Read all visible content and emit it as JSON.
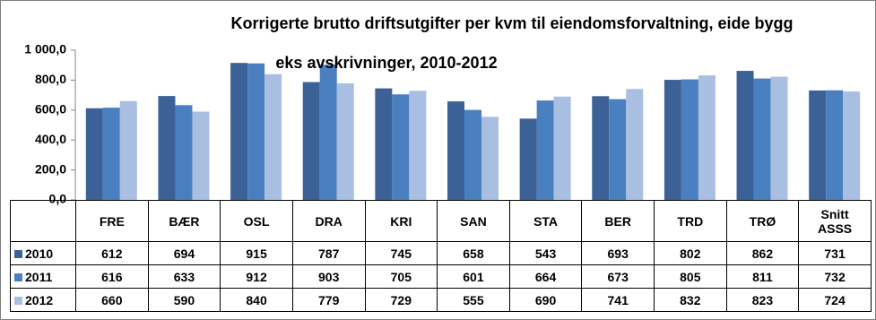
{
  "chart_data": {
    "type": "bar",
    "title": "Korrigerte brutto driftsutgifter per kvm til eiendomsforvaltning, eide bygg",
    "subtitle": "eks avskrivninger, 2010-2012",
    "categories": [
      "FRE",
      "BÆR",
      "OSL",
      "DRA",
      "KRI",
      "SAN",
      "STA",
      "BER",
      "TRD",
      "TRØ",
      "Snitt ASSS"
    ],
    "series": [
      {
        "name": "2010",
        "color": "#3b6196",
        "values": [
          612,
          694,
          915,
          787,
          745,
          658,
          543,
          693,
          802,
          862,
          731
        ]
      },
      {
        "name": "2011",
        "color": "#4a7fc0",
        "values": [
          616,
          633,
          912,
          903,
          705,
          601,
          664,
          673,
          805,
          811,
          732
        ]
      },
      {
        "name": "2012",
        "color": "#a9bfe2",
        "values": [
          660,
          590,
          840,
          779,
          729,
          555,
          690,
          741,
          832,
          823,
          724
        ]
      }
    ],
    "ylim": [
      0,
      1000
    ],
    "yticks": [
      {
        "value": 0,
        "label": "0,0"
      },
      {
        "value": 200,
        "label": "200,0"
      },
      {
        "value": 400,
        "label": "400,0"
      },
      {
        "value": 600,
        "label": "600,0"
      },
      {
        "value": 800,
        "label": "800,0"
      },
      {
        "value": 1000,
        "label": "1 000,0"
      }
    ]
  }
}
